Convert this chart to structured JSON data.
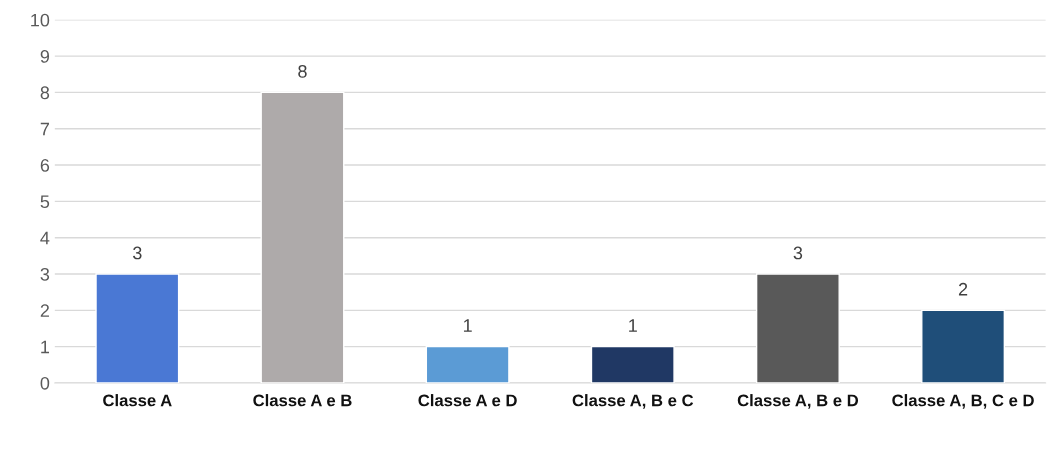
{
  "chart_data": {
    "type": "bar",
    "categories": [
      "Classe A",
      "Classe A e B",
      "Classe A e D",
      "Classe A, B e C",
      "Classe A, B e D",
      "Classe A, B, C e D"
    ],
    "values": [
      3,
      8,
      1,
      1,
      3,
      2
    ],
    "colors": [
      "#4a78d4",
      "#aeaaaa",
      "#5b9bd5",
      "#203864",
      "#595959",
      "#1f4e79"
    ],
    "ylim": [
      0,
      10
    ],
    "yticks": [
      0,
      1,
      2,
      3,
      4,
      5,
      6,
      7,
      8,
      9,
      10
    ],
    "grid": "y",
    "data_labels": true
  }
}
